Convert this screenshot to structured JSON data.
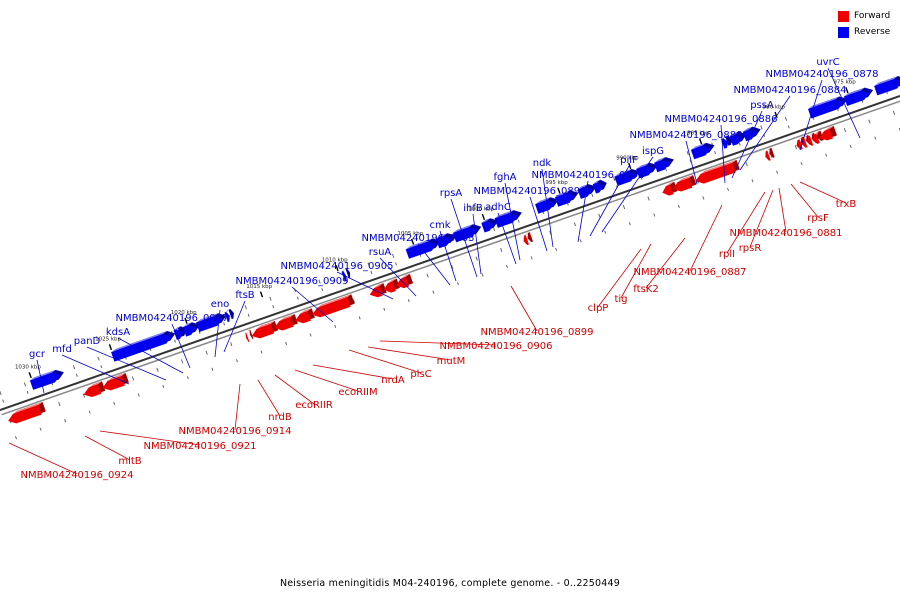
{
  "legend": [
    {
      "label": "Forward",
      "color": "#ee0000"
    },
    {
      "label": "Reverse",
      "color": "#0000ee"
    }
  ],
  "caption": "Neisseria meningitidis M04-240196, complete genome. - 0..2250449",
  "colors": {
    "forward": "#ee0000",
    "forward_top": "#ff8080",
    "forward_side": "#9a0000",
    "reverse": "#0000ee",
    "reverse_top": "#8080ff",
    "reverse_side": "#00009a",
    "forward_label": "#cc0000",
    "reverse_label": "#0000cc",
    "axis": "#555555"
  },
  "scale_labels": [
    "1030 kbp",
    "1025 kbp",
    "1020 kbp",
    "1015 kbp",
    "1010 kbp",
    "1005 kbp",
    "1000 kbp",
    "995 kbp",
    "990 kbp",
    "985 kbp",
    "980 kbp",
    "975 kbp"
  ],
  "reverse_genes": [
    "gcr",
    "mfd",
    "panD",
    "kdsA",
    "NMBM04240196_0917",
    "eno",
    "ftsB",
    "NMBM04240196_0909",
    "NMBM04240196_0905",
    "rsuA",
    "NMBM04240196_0903",
    "cmk",
    "rpsA",
    "ihfB",
    "adhC",
    "fghA",
    "NMBM04240196_0896",
    "ndk",
    "NMBM04240196_0894",
    "pilF",
    "ispG",
    "NMBM04240196_0888",
    "NMBM04240196_0886",
    "pssA",
    "NMBM04240196_0884",
    "NMBM04240196_0878",
    "uvrC"
  ],
  "forward_genes": [
    "NMBM04240196_0924",
    "mltB",
    "NMBM04240196_0921",
    "NMBM04240196_0914",
    "nrdB",
    "ecoRIIR",
    "ecoRIIM",
    "nrdA",
    "plsC",
    "mutM",
    "NMBM04240196_0906",
    "NMBM04240196_0899",
    "clpP",
    "tig",
    "ftsK2",
    "NMBM04240196_0887",
    "rplI",
    "rpsR",
    "NMBM04240196_0881",
    "rpsF",
    "trxB"
  ]
}
